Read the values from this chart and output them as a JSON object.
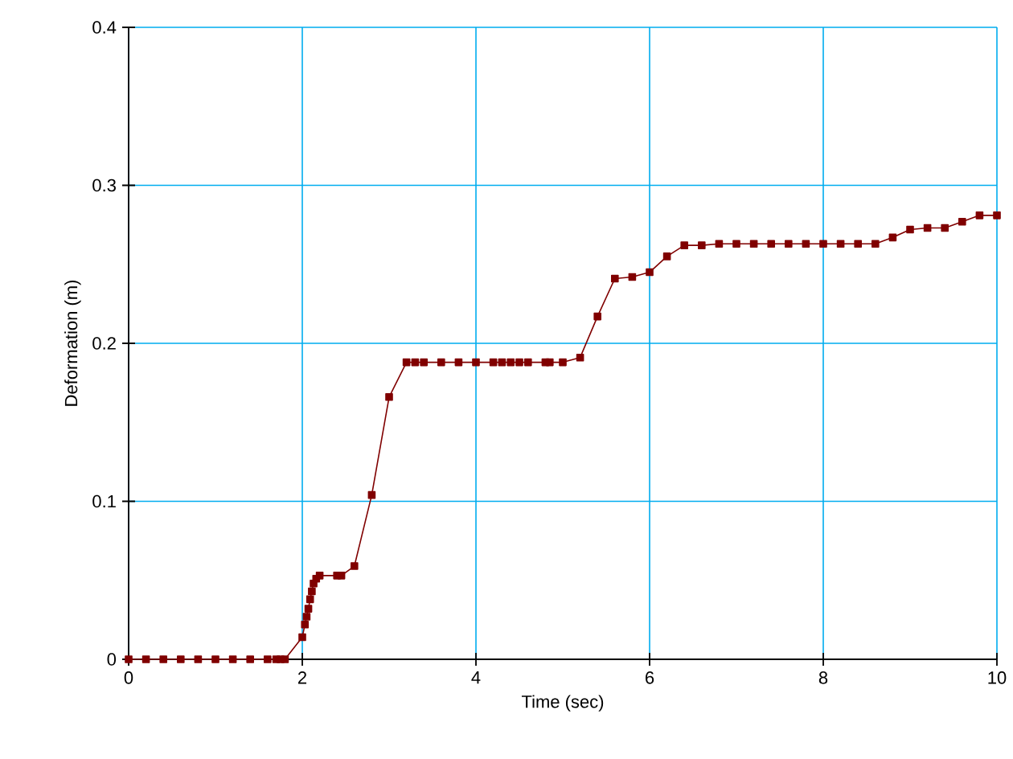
{
  "chart_data": {
    "type": "line",
    "xlabel": "Time (sec)",
    "ylabel": "Deformation (m)",
    "xlim": [
      0,
      10
    ],
    "ylim": [
      0,
      0.4
    ],
    "xticks": [
      0,
      2,
      4,
      6,
      8,
      10
    ],
    "yticks": [
      0,
      0.1,
      0.2,
      0.3,
      0.4
    ],
    "grid": true,
    "marker": "square",
    "line_style": "solid",
    "series": [
      {
        "color": "#800000",
        "x": [
          0,
          0.2,
          0.4,
          0.6,
          0.8,
          1.0,
          1.2,
          1.4,
          1.6,
          1.7,
          1.75,
          1.8,
          2.0,
          2.03,
          2.05,
          2.07,
          2.09,
          2.11,
          2.13,
          2.16,
          2.2,
          2.4,
          2.45,
          2.6,
          2.8,
          3.0,
          3.2,
          3.3,
          3.4,
          3.6,
          3.8,
          4.0,
          4.2,
          4.3,
          4.4,
          4.5,
          4.6,
          4.8,
          4.85,
          5.0,
          5.2,
          5.4,
          5.6,
          5.8,
          6.0,
          6.2,
          6.4,
          6.6,
          6.8,
          7.0,
          7.2,
          7.4,
          7.6,
          7.8,
          8.0,
          8.2,
          8.4,
          8.6,
          8.8,
          9.0,
          9.2,
          9.4,
          9.6,
          9.8,
          10.0
        ],
        "values": [
          0,
          0,
          0,
          0,
          0,
          0,
          0,
          0,
          0,
          0,
          0,
          0,
          0.014,
          0.022,
          0.027,
          0.032,
          0.038,
          0.043,
          0.048,
          0.051,
          0.053,
          0.053,
          0.053,
          0.059,
          0.104,
          0.166,
          0.188,
          0.188,
          0.188,
          0.188,
          0.188,
          0.188,
          0.188,
          0.188,
          0.188,
          0.188,
          0.188,
          0.188,
          0.188,
          0.188,
          0.191,
          0.217,
          0.241,
          0.242,
          0.245,
          0.255,
          0.262,
          0.262,
          0.263,
          0.263,
          0.263,
          0.263,
          0.263,
          0.263,
          0.263,
          0.263,
          0.263,
          0.263,
          0.267,
          0.272,
          0.273,
          0.273,
          0.277,
          0.281,
          0.281
        ]
      }
    ]
  }
}
